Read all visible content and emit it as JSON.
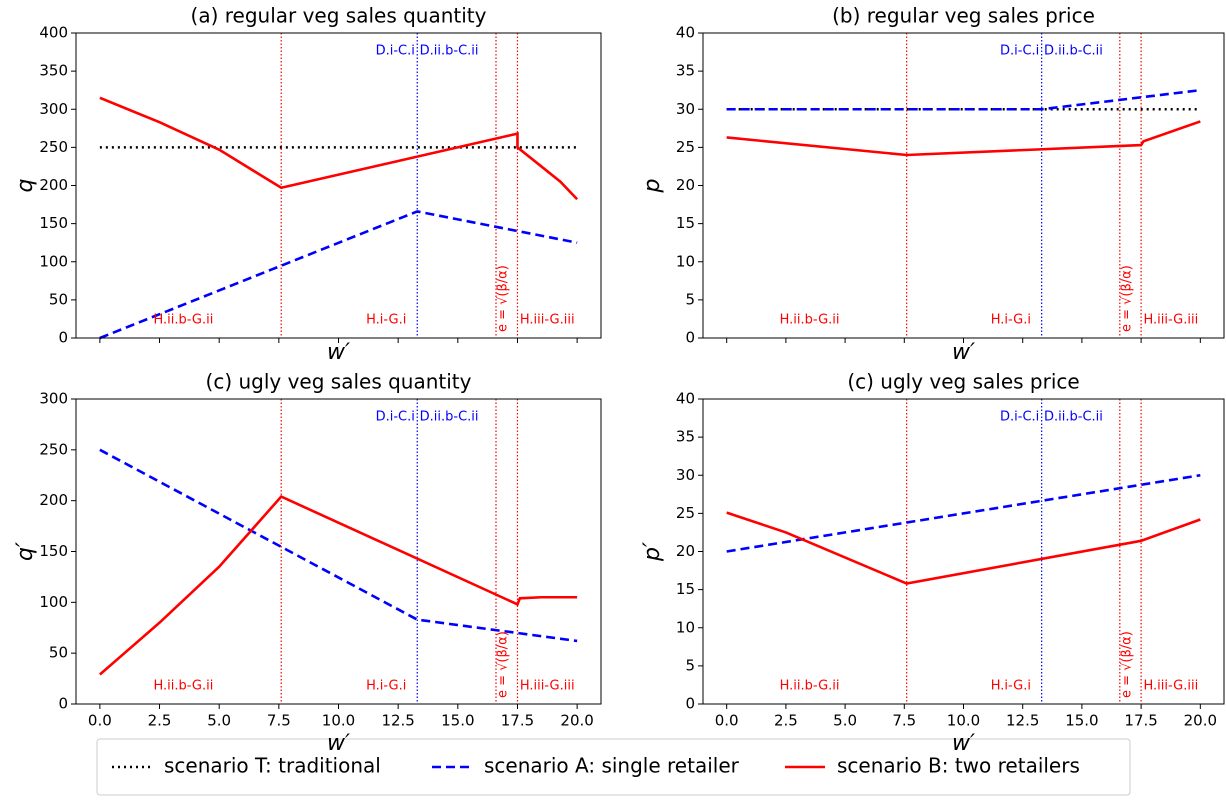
{
  "chart_data": [
    {
      "type": "line",
      "title": "(a) regular veg sales quantity",
      "xlabel": "w′",
      "ylabel": "q",
      "xlim": [
        -1,
        21
      ],
      "ylim": [
        0,
        400
      ],
      "yticks": [
        0,
        50,
        100,
        150,
        200,
        250,
        300,
        350,
        400
      ],
      "xticks": [
        0,
        2.5,
        5,
        7.5,
        10,
        12.5,
        15,
        17.5,
        20
      ],
      "series": [
        {
          "name": "scenario T: traditional",
          "color": "#000000",
          "style": "dotted",
          "x": [
            0,
            20
          ],
          "values": [
            250,
            250
          ]
        },
        {
          "name": "scenario A: single retailer",
          "color": "#0000ff",
          "style": "dashed",
          "x": [
            0,
            13.3,
            20
          ],
          "values": [
            0,
            166,
            125
          ]
        },
        {
          "name": "scenario B: two retailers",
          "color": "#ff0000",
          "style": "solid",
          "x": [
            0,
            2.5,
            5,
            7.6,
            17.5,
            17.5,
            18.5,
            19.3,
            20
          ],
          "values": [
            315,
            283,
            247,
            197,
            268,
            250,
            225,
            205,
            182
          ]
        }
      ],
      "vlines": [
        {
          "x": 7.6,
          "color": "#ff0000"
        },
        {
          "x": 13.3,
          "color": "#0000ff"
        },
        {
          "x": 16.6,
          "color": "#ff0000"
        },
        {
          "x": 17.5,
          "color": "#ff0000"
        }
      ],
      "annotations": [
        {
          "text": "H.ii.b-G.ii",
          "x": 3.5,
          "color": "#ff0000",
          "pos": "bottom",
          "align": "middle"
        },
        {
          "text": "H.i-G.i",
          "x": 12,
          "color": "#ff0000",
          "pos": "bottom",
          "align": "middle"
        },
        {
          "text": "H.iii-G.iii",
          "x": 17.6,
          "color": "#ff0000",
          "pos": "bottom",
          "align": "start"
        },
        {
          "text": "e = √(β/α)",
          "x": 16.9,
          "color": "#ff0000",
          "pos": "bottom",
          "align": "rotated"
        },
        {
          "text": "D.i-C.i",
          "x": 13.2,
          "color": "#0000ff",
          "pos": "top",
          "align": "end"
        },
        {
          "text": "D.ii.b-C.ii",
          "x": 13.4,
          "color": "#0000ff",
          "pos": "top",
          "align": "start"
        }
      ]
    },
    {
      "type": "line",
      "title": "(b) regular veg sales price",
      "xlabel": "w′",
      "ylabel": "p",
      "xlim": [
        -1,
        21
      ],
      "ylim": [
        0,
        40
      ],
      "yticks": [
        0,
        5,
        10,
        15,
        20,
        25,
        30,
        35,
        40
      ],
      "xticks": [
        0,
        2.5,
        5,
        7.5,
        10,
        12.5,
        15,
        17.5,
        20
      ],
      "series": [
        {
          "color": "#000000",
          "style": "dotted",
          "x": [
            0,
            20
          ],
          "values": [
            30,
            30
          ]
        },
        {
          "color": "#0000ff",
          "style": "dashed",
          "x": [
            0,
            13.3,
            20
          ],
          "values": [
            30,
            30,
            32.5
          ]
        },
        {
          "color": "#ff0000",
          "style": "solid",
          "x": [
            0,
            7.6,
            17.5,
            17.6,
            20
          ],
          "values": [
            26.3,
            24,
            25.3,
            25.8,
            28.4
          ]
        }
      ],
      "vlines": [
        {
          "x": 7.6,
          "color": "#ff0000"
        },
        {
          "x": 13.3,
          "color": "#0000ff"
        },
        {
          "x": 16.6,
          "color": "#ff0000"
        },
        {
          "x": 17.5,
          "color": "#ff0000"
        }
      ],
      "annotations": [
        {
          "text": "H.ii.b-G.ii",
          "x": 3.5,
          "color": "#ff0000",
          "pos": "bottom",
          "align": "middle"
        },
        {
          "text": "H.i-G.i",
          "x": 12,
          "color": "#ff0000",
          "pos": "bottom",
          "align": "middle"
        },
        {
          "text": "H.iii-G.iii",
          "x": 17.6,
          "color": "#ff0000",
          "pos": "bottom",
          "align": "start"
        },
        {
          "text": "e = √(β/α)",
          "x": 16.9,
          "color": "#ff0000",
          "pos": "bottom",
          "align": "rotated"
        },
        {
          "text": "D.i-C.i",
          "x": 13.2,
          "color": "#0000ff",
          "pos": "top",
          "align": "end"
        },
        {
          "text": "D.ii.b-C.ii",
          "x": 13.4,
          "color": "#0000ff",
          "pos": "top",
          "align": "start"
        }
      ]
    },
    {
      "type": "line",
      "title": "(c) ugly veg sales quantity",
      "xlabel": "w′",
      "ylabel": "q′",
      "xlim": [
        -1,
        21
      ],
      "ylim": [
        0,
        300
      ],
      "yticks": [
        0,
        50,
        100,
        150,
        200,
        250,
        300
      ],
      "xticks": [
        {
          "value": 0,
          "label": "0.0"
        },
        {
          "value": 2.5,
          "label": "2.5"
        },
        {
          "value": 5,
          "label": "5.0"
        },
        {
          "value": 7.5,
          "label": "7.5"
        },
        {
          "value": 10,
          "label": "10.0"
        },
        {
          "value": 12.5,
          "label": "12.5"
        },
        {
          "value": 15,
          "label": "15.0"
        },
        {
          "value": 17.5,
          "label": "17.5"
        },
        {
          "value": 20,
          "label": "20.0"
        }
      ],
      "series": [
        {
          "color": "#0000ff",
          "style": "dashed",
          "x": [
            0,
            13.3,
            20
          ],
          "values": [
            250,
            83,
            62
          ]
        },
        {
          "color": "#ff0000",
          "style": "solid",
          "x": [
            0,
            2.5,
            5,
            7.6,
            17.5,
            17.6,
            18.5,
            20
          ],
          "values": [
            29,
            80,
            135,
            204,
            98,
            104,
            105,
            105
          ]
        }
      ],
      "vlines": [
        {
          "x": 7.6,
          "color": "#ff0000"
        },
        {
          "x": 13.3,
          "color": "#0000ff"
        },
        {
          "x": 16.6,
          "color": "#ff0000"
        },
        {
          "x": 17.5,
          "color": "#ff0000"
        }
      ],
      "annotations": [
        {
          "text": "H.ii.b-G.ii",
          "x": 3.5,
          "color": "#ff0000",
          "pos": "bottom",
          "align": "middle"
        },
        {
          "text": "H.i-G.i",
          "x": 12,
          "color": "#ff0000",
          "pos": "bottom",
          "align": "middle"
        },
        {
          "text": "H.iii-G.iii",
          "x": 17.6,
          "color": "#ff0000",
          "pos": "bottom",
          "align": "start"
        },
        {
          "text": "e = √(β/α)",
          "x": 16.9,
          "color": "#ff0000",
          "pos": "bottom",
          "align": "rotated"
        },
        {
          "text": "D.i-C.i",
          "x": 13.2,
          "color": "#0000ff",
          "pos": "top",
          "align": "end"
        },
        {
          "text": "D.ii.b-C.ii",
          "x": 13.4,
          "color": "#0000ff",
          "pos": "top",
          "align": "start"
        }
      ]
    },
    {
      "type": "line",
      "title": "(c) ugly veg sales price",
      "xlabel": "w′",
      "ylabel": "p′",
      "xlim": [
        -1,
        21
      ],
      "ylim": [
        0,
        40
      ],
      "yticks": [
        0,
        5,
        10,
        15,
        20,
        25,
        30,
        35,
        40
      ],
      "xticks": [
        {
          "value": 0,
          "label": "0.0"
        },
        {
          "value": 2.5,
          "label": "2.5"
        },
        {
          "value": 5,
          "label": "5.0"
        },
        {
          "value": 7.5,
          "label": "7.5"
        },
        {
          "value": 10,
          "label": "10.0"
        },
        {
          "value": 12.5,
          "label": "12.5"
        },
        {
          "value": 15,
          "label": "15.0"
        },
        {
          "value": 17.5,
          "label": "17.5"
        },
        {
          "value": 20,
          "label": "20.0"
        }
      ],
      "series": [
        {
          "color": "#0000ff",
          "style": "dashed",
          "x": [
            0,
            20
          ],
          "values": [
            20,
            30
          ]
        },
        {
          "color": "#ff0000",
          "style": "solid",
          "x": [
            0,
            2.5,
            7.6,
            17.5,
            20
          ],
          "values": [
            25.1,
            22.5,
            15.8,
            21.4,
            24.2
          ]
        }
      ],
      "vlines": [
        {
          "x": 7.6,
          "color": "#ff0000"
        },
        {
          "x": 13.3,
          "color": "#0000ff"
        },
        {
          "x": 16.6,
          "color": "#ff0000"
        },
        {
          "x": 17.5,
          "color": "#ff0000"
        }
      ],
      "annotations": [
        {
          "text": "H.ii.b-G.ii",
          "x": 3.5,
          "color": "#ff0000",
          "pos": "bottom",
          "align": "middle"
        },
        {
          "text": "H.i-G.i",
          "x": 12,
          "color": "#ff0000",
          "pos": "bottom",
          "align": "middle"
        },
        {
          "text": "H.iii-G.iii",
          "x": 17.6,
          "color": "#ff0000",
          "pos": "bottom",
          "align": "start"
        },
        {
          "text": "e = √(β/α)",
          "x": 16.9,
          "color": "#ff0000",
          "pos": "bottom",
          "align": "rotated"
        },
        {
          "text": "D.i-C.i",
          "x": 13.2,
          "color": "#0000ff",
          "pos": "top",
          "align": "end"
        },
        {
          "text": "D.ii.b-C.ii",
          "x": 13.4,
          "color": "#0000ff",
          "pos": "top",
          "align": "start"
        }
      ]
    }
  ]
}
